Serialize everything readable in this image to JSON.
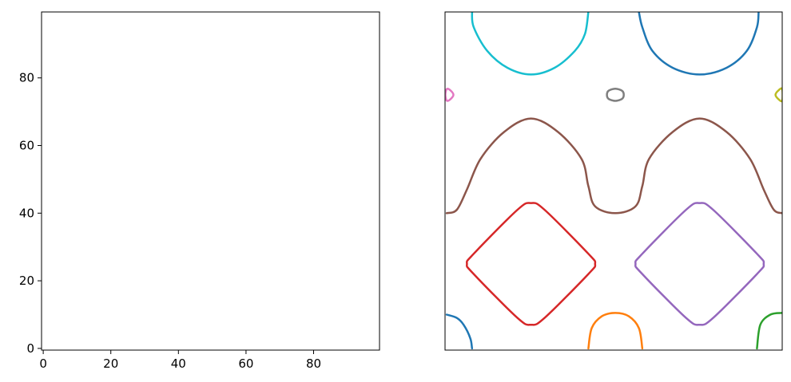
{
  "chart_data": [
    {
      "type": "heatmap",
      "colormap": "gray",
      "title": "",
      "xlabel": "",
      "ylabel": "",
      "grid": false,
      "xlim": [
        -0.5,
        99.5
      ],
      "ylim": [
        99.5,
        -0.5
      ],
      "x_ticks": [
        0,
        20,
        40,
        60,
        80
      ],
      "y_ticks": [
        0,
        20,
        40,
        60,
        80
      ],
      "x_tick_labels": [
        "0",
        "20",
        "40",
        "60",
        "80"
      ],
      "y_tick_labels": [
        "0",
        "20",
        "40",
        "60",
        "80"
      ]
    },
    {
      "type": "heatmap",
      "colormap": "gray",
      "overlay": "contour",
      "axes_visible": false,
      "xlim": [
        -0.5,
        99.5
      ],
      "ylim": [
        99.5,
        -0.5
      ],
      "contours": [
        {
          "color": "#1f77b4",
          "points": [
            [
              7.5,
              0
            ],
            [
              7,
              3
            ],
            [
              5,
              7
            ],
            [
              3,
              9
            ],
            [
              0,
              10
            ]
          ]
        },
        {
          "color": "#ff7f0e",
          "points": [
            [
              42,
              0
            ],
            [
              43,
              6
            ],
            [
              46,
              9.5
            ],
            [
              50,
              10.5
            ],
            [
              54,
              9.5
            ],
            [
              57,
              6
            ],
            [
              58,
              0
            ]
          ]
        },
        {
          "color": "#2ca02c",
          "points": [
            [
              92,
              0
            ],
            [
              93,
              7
            ],
            [
              96,
              10
            ],
            [
              99.5,
              10.5
            ]
          ]
        },
        {
          "color": "#d62728",
          "closed": true,
          "points": [
            [
              25,
              7
            ],
            [
              29,
              9
            ],
            [
              42,
              22
            ],
            [
              44,
              25
            ],
            [
              42,
              28
            ],
            [
              29,
              41
            ],
            [
              25,
              43
            ],
            [
              21,
              41
            ],
            [
              8,
              28
            ],
            [
              6,
              25
            ],
            [
              8,
              22
            ],
            [
              21,
              9
            ]
          ]
        },
        {
          "color": "#9467bd",
          "closed": true,
          "points": [
            [
              75,
              7
            ],
            [
              79,
              9
            ],
            [
              92,
              22
            ],
            [
              94,
              25
            ],
            [
              92,
              28
            ],
            [
              79,
              41
            ],
            [
              75,
              43
            ],
            [
              71,
              41
            ],
            [
              58,
              28
            ],
            [
              56,
              25
            ],
            [
              58,
              22
            ],
            [
              71,
              9
            ]
          ]
        },
        {
          "color": "#8c564b",
          "points": [
            [
              0,
              40
            ],
            [
              3,
              41
            ],
            [
              6,
              47
            ],
            [
              10,
              56
            ],
            [
              17,
              64
            ],
            [
              25,
              68
            ],
            [
              33,
              64
            ],
            [
              40,
              56
            ],
            [
              42,
              48
            ],
            [
              44,
              42
            ],
            [
              50,
              40
            ],
            [
              56,
              42
            ],
            [
              58,
              48
            ],
            [
              60,
              56
            ],
            [
              67,
              64
            ],
            [
              75,
              68
            ],
            [
              83,
              64
            ],
            [
              90,
              56
            ],
            [
              94,
              47
            ],
            [
              97,
              41
            ],
            [
              99.5,
              40
            ]
          ]
        },
        {
          "color": "#e377c2",
          "closed": true,
          "points": [
            [
              0,
              73.3
            ],
            [
              1,
              73.6
            ],
            [
              2,
              75
            ],
            [
              1,
              76.4
            ],
            [
              0,
              76.7
            ],
            [
              -0.4,
              75
            ]
          ]
        },
        {
          "color": "#7f7f7f",
          "closed": true,
          "points": [
            [
              50,
              73.2
            ],
            [
              52,
              73.8
            ],
            [
              52.5,
              75
            ],
            [
              52,
              76.2
            ],
            [
              50,
              76.8
            ],
            [
              48,
              76.2
            ],
            [
              47.5,
              75
            ],
            [
              48,
              73.8
            ]
          ]
        },
        {
          "color": "#bcbd22",
          "closed": true,
          "points": [
            [
              99.5,
              73.3
            ],
            [
              98.5,
              73.6
            ],
            [
              97.5,
              75
            ],
            [
              98.5,
              76.4
            ],
            [
              99.5,
              76.7
            ]
          ]
        },
        {
          "color": "#17becf",
          "points": [
            [
              7.5,
              99.5
            ],
            [
              8,
              95
            ],
            [
              12,
              88
            ],
            [
              18,
              83
            ],
            [
              25,
              81
            ],
            [
              32,
              83
            ],
            [
              38,
              88
            ],
            [
              41,
              93
            ],
            [
              42,
              99.5
            ]
          ]
        },
        {
          "color": "#1f77b4",
          "points": [
            [
              57,
              99.5
            ],
            [
              58,
              95
            ],
            [
              61,
              88
            ],
            [
              67,
              83
            ],
            [
              75,
              81
            ],
            [
              83,
              83
            ],
            [
              89,
              88
            ],
            [
              92,
              95
            ],
            [
              92.5,
              99.5
            ]
          ]
        }
      ]
    }
  ]
}
